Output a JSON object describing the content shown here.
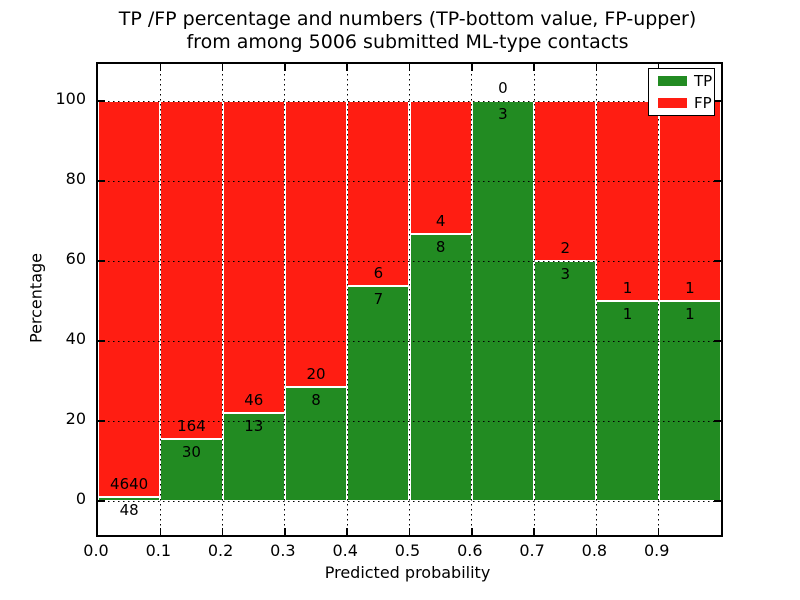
{
  "title": {
    "line1": "TP /FP percentage and numbers (TP-bottom value, FP-upper)",
    "line2": "from among 5006 submitted ML-type contacts"
  },
  "chart_data": {
    "type": "bar",
    "subtype": "stacked-100-percent",
    "title": "TP /FP percentage and numbers (TP-bottom value, FP-upper) from among 5006 submitted ML-type contacts",
    "xlabel": "Predicted probability",
    "ylabel": "Percentage",
    "x_tick_labels": [
      "0.0",
      "0.1",
      "0.2",
      "0.3",
      "0.4",
      "0.5",
      "0.6",
      "0.7",
      "0.8",
      "0.9"
    ],
    "y_tick_values": [
      0,
      20,
      40,
      60,
      80,
      100
    ],
    "xlim": [
      0.0,
      1.0
    ],
    "ylim": [
      -8.5,
      109.25
    ],
    "grid": "dotted-black-over-bars",
    "total_contacts": 5006,
    "legend": {
      "position": "upper-right",
      "entries": [
        {
          "label": "TP",
          "color": "#228B22"
        },
        {
          "label": "FP",
          "color": "#FF1D12"
        }
      ]
    },
    "colors": {
      "tp": "#228B22",
      "fp": "#FF1D12",
      "bar_edge": "#ffffff"
    },
    "bins": [
      {
        "range": "0.0-0.1",
        "tp": 48,
        "fp": 4640
      },
      {
        "range": "0.1-0.2",
        "tp": 30,
        "fp": 164
      },
      {
        "range": "0.2-0.3",
        "tp": 13,
        "fp": 46
      },
      {
        "range": "0.3-0.4",
        "tp": 8,
        "fp": 20
      },
      {
        "range": "0.4-0.5",
        "tp": 7,
        "fp": 6
      },
      {
        "range": "0.5-0.6",
        "tp": 8,
        "fp": 4
      },
      {
        "range": "0.6-0.7",
        "tp": 3,
        "fp": 0
      },
      {
        "range": "0.7-0.8",
        "tp": 3,
        "fp": 2
      },
      {
        "range": "0.8-0.9",
        "tp": 1,
        "fp": 1
      },
      {
        "range": "0.9-1.0",
        "tp": 1,
        "fp": 1
      }
    ]
  }
}
